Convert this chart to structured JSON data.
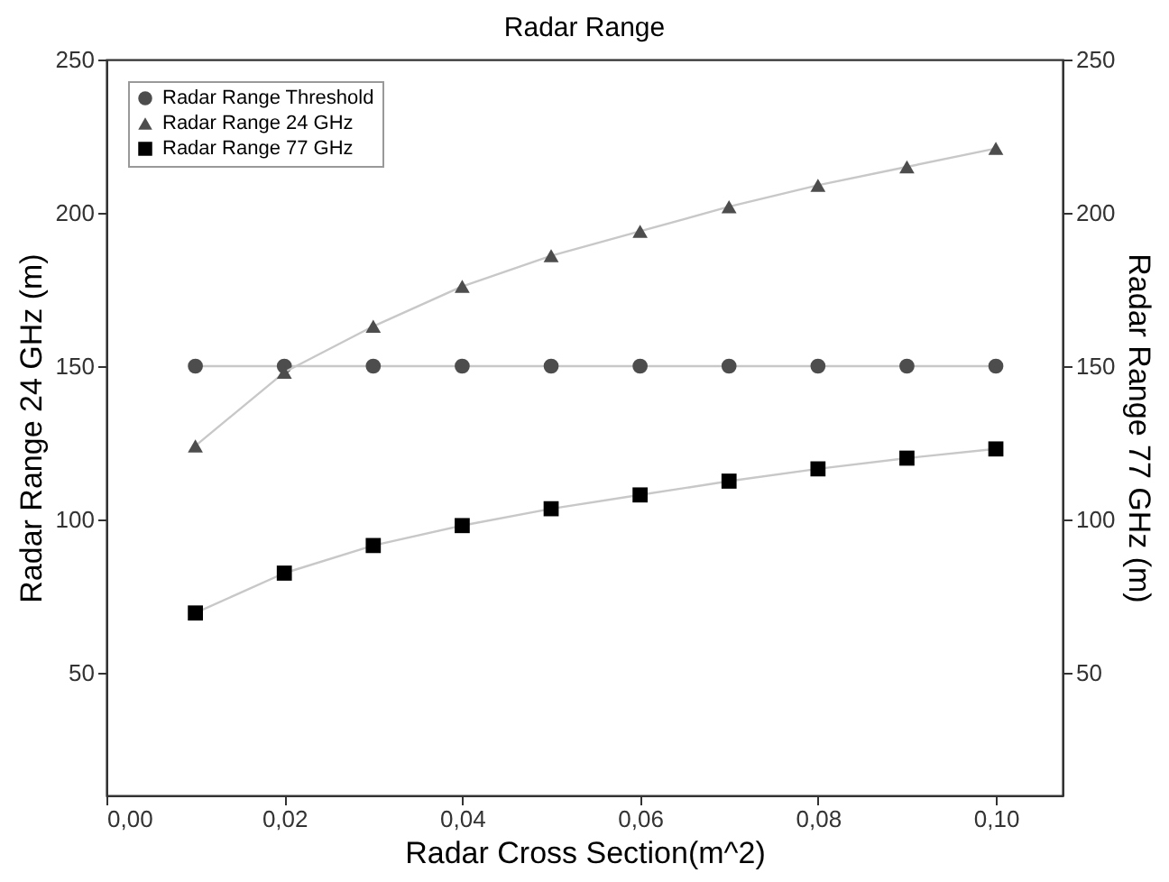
{
  "chart_data": {
    "type": "line",
    "title": "Radar Range",
    "xlabel": "Radar Cross Section(m^2)",
    "ylabel": "Radar Range 24 GHz (m)",
    "y2label": "Radar Range 77 GHz (m)",
    "x": [
      0.01,
      0.02,
      0.03,
      0.04,
      0.05,
      0.06,
      0.07,
      0.08,
      0.09,
      0.1
    ],
    "series": [
      {
        "name": "Radar Range Threshold",
        "color": "#4d4d4d",
        "marker": "circle",
        "values": [
          150,
          150,
          150,
          150,
          150,
          150,
          150,
          150,
          150,
          150
        ]
      },
      {
        "name": "Radar Range 24 GHz",
        "color": "#4d4d4d",
        "marker": "triangle",
        "values": [
          124,
          148,
          163,
          176,
          186,
          194,
          202,
          209,
          215,
          221
        ]
      },
      {
        "name": "Radar Range 77 GHz",
        "color": "#000000",
        "marker": "square",
        "axis": "y2",
        "values": [
          69.5,
          82.5,
          91.5,
          98,
          103.5,
          108,
          112.5,
          116.5,
          120,
          123
        ]
      }
    ],
    "xlim": [
      0,
      0.1075
    ],
    "xticks": [
      {
        "value": 0,
        "label": "0,00"
      },
      {
        "value": 0.02,
        "label": "0,02"
      },
      {
        "value": 0.04,
        "label": "0,04"
      },
      {
        "value": 0.06,
        "label": "0,06"
      },
      {
        "value": 0.08,
        "label": "0,08"
      },
      {
        "value": 0.1,
        "label": "0,10"
      }
    ],
    "ylim": [
      10,
      250
    ],
    "yticks": [
      50,
      100,
      150,
      200,
      250
    ],
    "y2lim": [
      10,
      250
    ],
    "y2ticks": [
      50,
      100,
      150,
      200,
      250
    ],
    "legend": "top left",
    "grid": false,
    "line_style": "solid"
  }
}
